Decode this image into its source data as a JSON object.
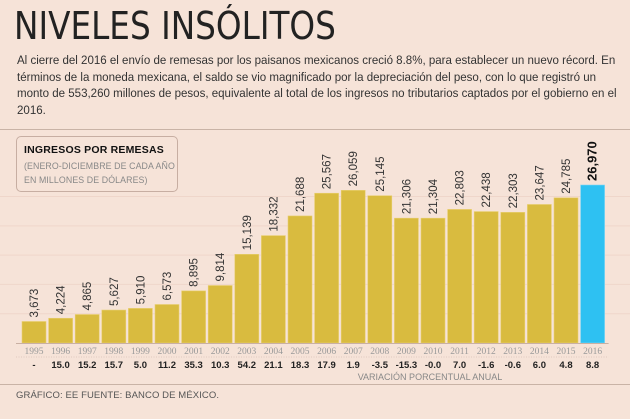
{
  "header": {
    "title": "NIVELES INSÓLITOS",
    "intro": "Al cierre del 2016 el envío de remesas por los paisanos mexicanos creció 8.8%, para establecer un nuevo récord. En términos de la moneda mexicana, el saldo se vio magnificado por la depreciación del peso, con lo que registró un monto de 553,260 millones de pesos, equivalente al total de los ingresos no tributarios captados por el gobierno en el 2016."
  },
  "legend": {
    "title": "INGRESOS POR REMESAS",
    "subtitle_line1": "(ENERO-DICIEMBRE DE CADA AÑO",
    "subtitle_line2": "EN MILLONES DE DÓLARES)"
  },
  "colors": {
    "bar": "#d9bb3f",
    "highlight_bar": "#2ec1f2",
    "background": "#f6e3d8"
  },
  "chart_data": {
    "type": "bar",
    "title": "INGRESOS POR REMESAS",
    "subtitle": "(ENERO-DICIEMBRE DE CADA AÑO EN MILLONES DE DÓLARES)",
    "xlabel": "",
    "ylabel": "Millones de dólares",
    "ylim": [
      0,
      27000
    ],
    "grid": true,
    "categories": [
      "1995",
      "1996",
      "1997",
      "1998",
      "1999",
      "2000",
      "2001",
      "2002",
      "2003",
      "2004",
      "2005",
      "2006",
      "2007",
      "2008",
      "2009",
      "2010",
      "2011",
      "2012",
      "2013",
      "2014",
      "2015",
      "2016"
    ],
    "values": [
      3673,
      4224,
      4865,
      5627,
      5910,
      6573,
      8895,
      9814,
      15139,
      18332,
      21688,
      25567,
      26059,
      25145,
      21306,
      21304,
      22803,
      22438,
      22303,
      23647,
      24785,
      26970
    ],
    "value_labels": [
      "3,673",
      "4,224",
      "4,865",
      "5,627",
      "5,910",
      "6,573",
      "8,895",
      "9,814",
      "15,139",
      "18,332",
      "21,688",
      "25,567",
      "26,059",
      "25,145",
      "21,306",
      "21,304",
      "22,803",
      "22,438",
      "22,303",
      "23,647",
      "24,785",
      "26,970"
    ],
    "highlight_category": "2016",
    "secondary_row": {
      "label": "VARIACIÓN PORCENTUAL ANUAL",
      "values": [
        "-",
        "15.0",
        "15.2",
        "15.7",
        "5.0",
        "11.2",
        "35.3",
        "10.3",
        "54.2",
        "21.1",
        "18.3",
        "17.9",
        "1.9",
        "-3.5",
        "-15.3",
        "-0.0",
        "7.0",
        "-1.6",
        "-0.6",
        "6.0",
        "4.8",
        "8.8"
      ]
    }
  },
  "footer": {
    "credit": "GRÁFICO: EE  FUENTE: BANCO DE MÉXICO."
  }
}
